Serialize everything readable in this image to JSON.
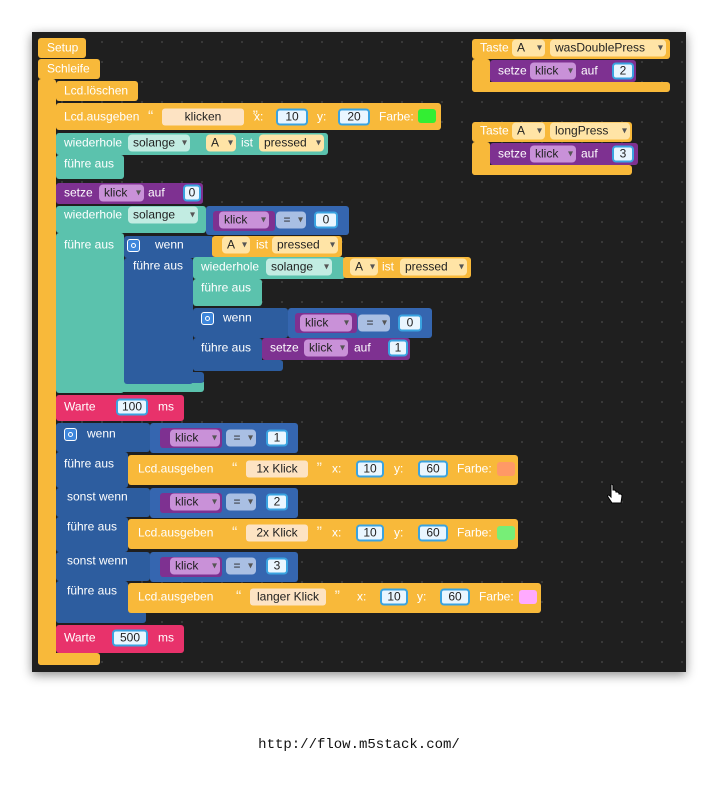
{
  "blocks": [
    [
      "Setup"
    ],
    [
      "Schleife"
    ],
    [
      "Lcd.löschen"
    ],
    [
      "Lcd.ausgeben",
      "klicken",
      "x:",
      "10",
      "y:",
      "20",
      "Farbe:"
    ],
    [
      "wiederhole",
      "solange",
      "A",
      "ist",
      "pressed",
      "führe aus"
    ],
    [
      "setze",
      "klick",
      "auf",
      "0"
    ],
    [
      "wiederhole",
      "solange",
      "klick",
      "=",
      "0",
      "führe aus"
    ],
    [
      "wenn",
      "A",
      "ist",
      "pressed",
      "führe aus"
    ],
    [
      "wiederhole",
      "solange",
      "A",
      "ist",
      "pressed",
      "führe aus"
    ],
    [
      "wenn",
      "klick",
      "=",
      "0",
      "führe aus"
    ],
    [
      "setze",
      "klick",
      "auf",
      "1"
    ],
    [
      "Warte",
      "100",
      "ms"
    ],
    [
      "wenn",
      "klick",
      "=",
      "1",
      "führe aus",
      "sonst wenn",
      "klick",
      "=",
      "2",
      "führe aus",
      "sonst wenn",
      "klick",
      "=",
      "3",
      "führe aus"
    ],
    [
      "Lcd.ausgeben",
      "1x Klick",
      "x:",
      "10",
      "y:",
      "60",
      "Farbe:"
    ],
    [
      "Lcd.ausgeben",
      "2x Klick",
      "x:",
      "10",
      "y:",
      "60",
      "Farbe:"
    ],
    [
      "Lcd.ausgeben",
      "langer Klick",
      "x:",
      "10",
      "y:",
      "60",
      "Farbe:"
    ],
    [
      "Warte",
      "500",
      "ms"
    ],
    [
      "Taste",
      "A",
      "wasDoublePress"
    ],
    [
      "setze",
      "klick",
      "auf",
      "2"
    ],
    [
      "Taste",
      "A",
      "longPress"
    ],
    [
      "setze",
      "klick",
      "auf",
      "3"
    ]
  ],
  "url": "http://flow.m5stack.com/"
}
